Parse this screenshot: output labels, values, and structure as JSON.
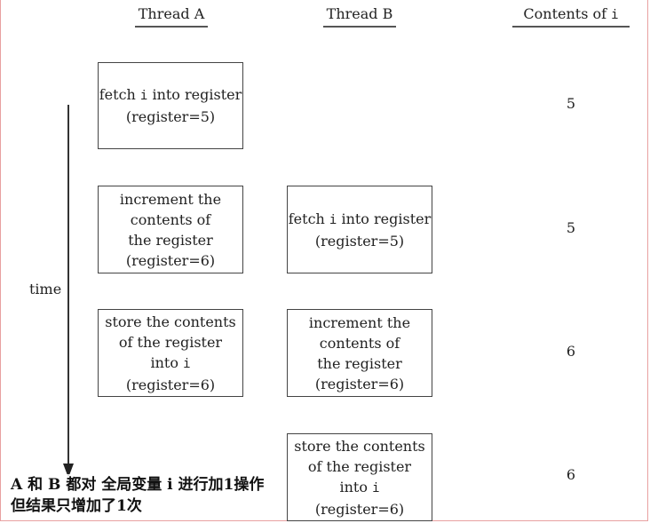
{
  "header": {
    "thread_a": "Thread A",
    "thread_b": "Thread B",
    "contents_prefix": "Contents of",
    "contents_var": "i"
  },
  "time_label": "time",
  "rows": [
    {
      "a": {
        "l1_pre": "fetch ",
        "l1_var": "i",
        "l1_post": " into register",
        "l2": "(register=5)"
      },
      "value": "5"
    },
    {
      "a": {
        "l1": "increment the",
        "l2": "contents of",
        "l3": "the register",
        "l4": "(register=6)"
      },
      "b": {
        "l1_pre": "fetch ",
        "l1_var": "i",
        "l1_post": " into register",
        "l2": "(register=5)"
      },
      "value": "5"
    },
    {
      "a": {
        "l1": "store the contents",
        "l2": "of the register",
        "l3_pre": "into ",
        "l3_var": "i",
        "l4": "(register=6)"
      },
      "b": {
        "l1": "increment the",
        "l2": "contents of",
        "l3": "the register",
        "l4": "(register=6)"
      },
      "value": "6"
    },
    {
      "b": {
        "l1": "store the contents",
        "l2": "of the register",
        "l3_pre": "into ",
        "l3_var": "i",
        "l4": "(register=6)"
      },
      "value": "6"
    }
  ],
  "caption": {
    "line1": "A 和 B 都对 全局变量 i 进行加1操作",
    "line2": "但结果只增加了1次"
  }
}
